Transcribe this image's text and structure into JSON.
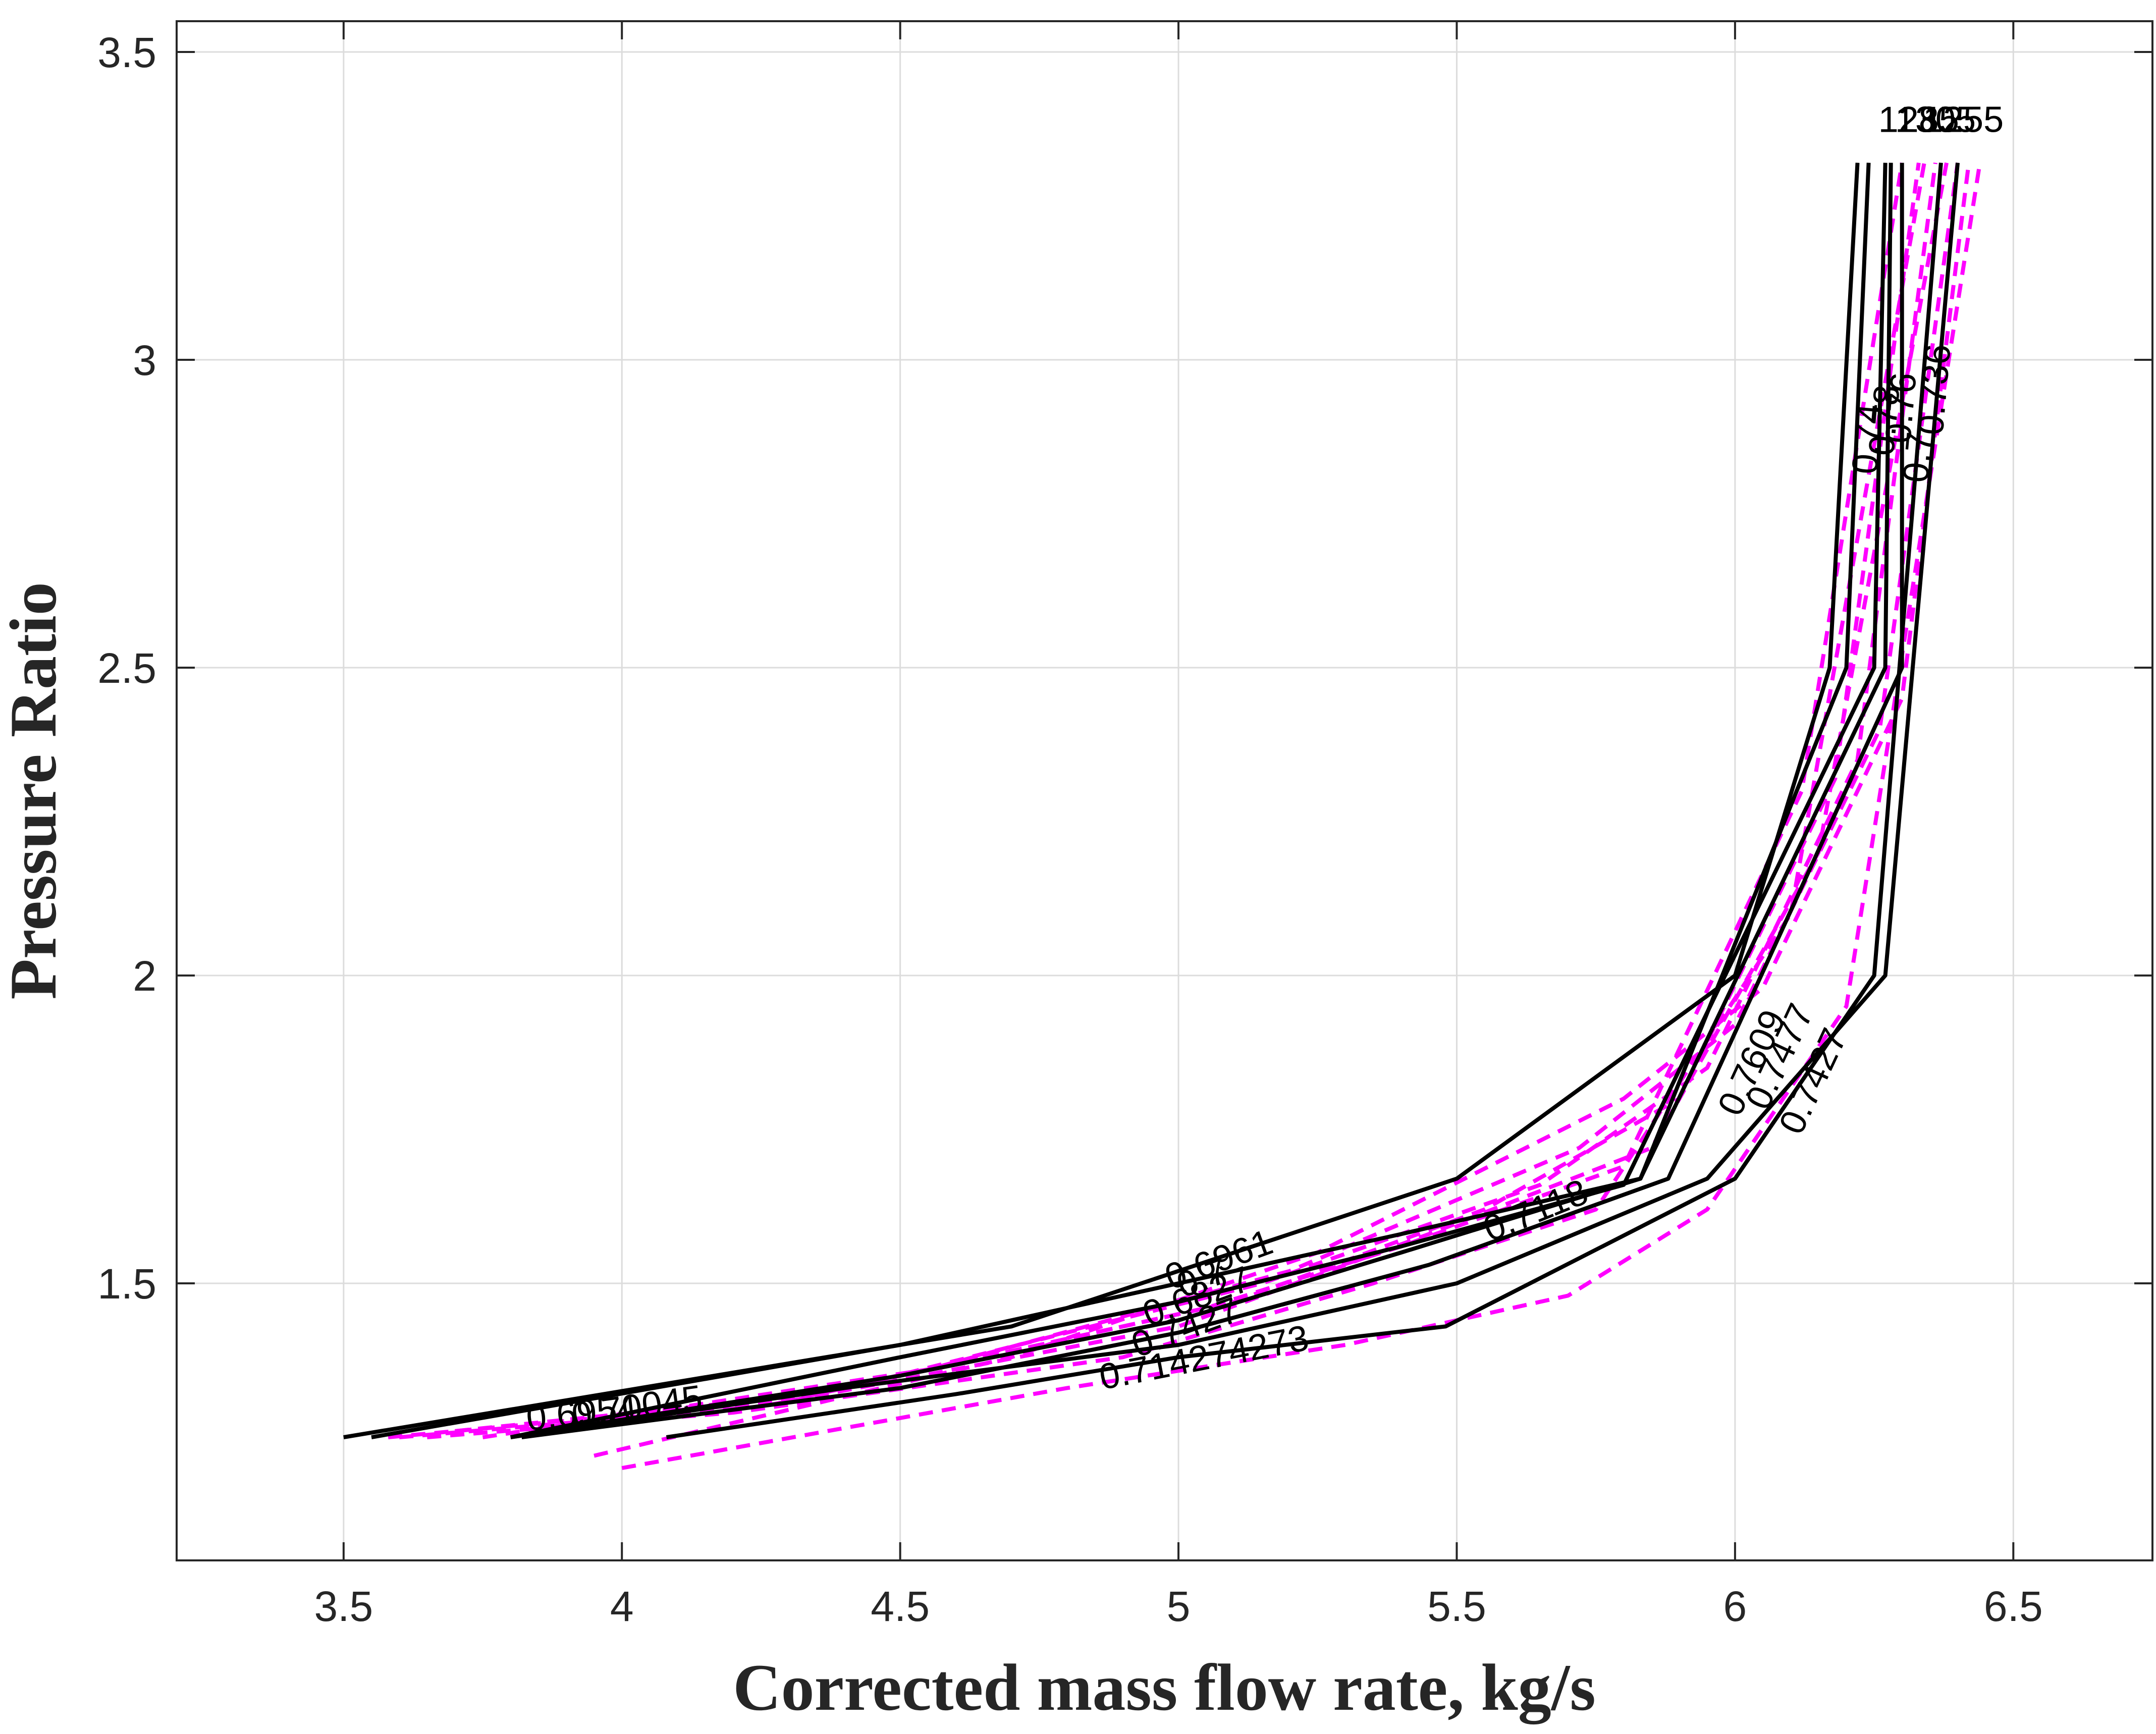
{
  "chart_data": {
    "type": "line",
    "title": "",
    "xlabel": "Corrected mass flow rate, kg/s",
    "ylabel": "Pressure Ratio",
    "xlim": [
      3.2,
      6.75
    ],
    "ylim": [
      1.05,
      3.55
    ],
    "xticks": [
      "3.5",
      "4",
      "4.5",
      "5",
      "5.5",
      "6",
      "6.5"
    ],
    "xtick_values": [
      3.5,
      4,
      4.5,
      5,
      5.5,
      6,
      6.5
    ],
    "yticks": [
      "1.5",
      "2",
      "2.5",
      "3",
      "3.5"
    ],
    "ytick_values": [
      1.5,
      2,
      2.5,
      3,
      3.5
    ],
    "grid": true,
    "colors": {
      "speed_line": "#000000",
      "efficiency_line": "#ff00ff",
      "grid": "#dcdcdc",
      "axis": "#262626"
    },
    "speed_lines": [
      {
        "name": "speed-1",
        "x": [
          3.5,
          4.7,
          5.0,
          5.5,
          6.0,
          6.17,
          6.22
        ],
        "y": [
          1.25,
          1.43,
          1.52,
          1.67,
          2.0,
          2.5,
          3.32
        ]
      },
      {
        "name": "speed-2",
        "x": [
          3.55,
          4.5,
          5.0,
          5.4,
          5.83,
          6.2,
          6.24
        ],
        "y": [
          1.25,
          1.4,
          1.5,
          1.58,
          1.67,
          2.5,
          3.32
        ]
      },
      {
        "name": "speed-3",
        "x": [
          3.8,
          4.5,
          5.0,
          5.4,
          5.8,
          6.25,
          6.27
        ],
        "y": [
          1.25,
          1.38,
          1.47,
          1.56,
          1.66,
          2.5,
          3.32
        ]
      },
      {
        "name": "speed-4",
        "x": [
          3.8,
          4.5,
          5.0,
          5.4,
          5.83,
          6.27,
          6.28
        ],
        "y": [
          1.25,
          1.35,
          1.44,
          1.55,
          1.67,
          2.5,
          3.32
        ]
      },
      {
        "name": "speed-5",
        "x": [
          3.82,
          4.5,
          5.0,
          5.45,
          5.88,
          6.3,
          6.3
        ],
        "y": [
          1.25,
          1.33,
          1.42,
          1.53,
          1.67,
          2.5,
          3.32
        ]
      },
      {
        "name": "speed-6",
        "x": [
          4.08,
          4.6,
          5.0,
          5.48,
          6.0,
          6.25,
          6.37
        ],
        "y": [
          1.25,
          1.32,
          1.38,
          1.43,
          1.67,
          2.0,
          3.32
        ]
      },
      {
        "name": "speed-7",
        "x": [
          3.8,
          4.4,
          5.0,
          5.5,
          5.95,
          6.27,
          6.4
        ],
        "y": [
          1.25,
          1.33,
          1.4,
          1.5,
          1.67,
          2.0,
          3.32
        ]
      }
    ],
    "efficiency_lines": [
      {
        "name": "eff-1",
        "x": [
          3.58,
          4.3,
          5.05,
          5.4,
          5.8,
          6.12,
          6.3
        ],
        "y": [
          1.25,
          1.31,
          1.46,
          1.56,
          1.69,
          2.3,
          3.32
        ]
      },
      {
        "name": "eff-2",
        "x": [
          3.7,
          4.35,
          5.1,
          5.55,
          5.9,
          6.18,
          6.33
        ],
        "y": [
          1.26,
          1.32,
          1.47,
          1.62,
          1.8,
          2.32,
          3.32
        ]
      },
      {
        "name": "eff-3",
        "x": [
          3.85,
          4.45,
          5.15,
          5.65,
          5.95,
          6.22,
          6.36
        ],
        "y": [
          1.26,
          1.34,
          1.5,
          1.66,
          1.85,
          2.35,
          3.32
        ]
      },
      {
        "name": "eff-4",
        "x": [
          3.75,
          4.55,
          5.2,
          5.72,
          6.0,
          6.26,
          6.4
        ],
        "y": [
          1.25,
          1.36,
          1.52,
          1.72,
          1.92,
          2.4,
          3.32
        ]
      },
      {
        "name": "eff-5",
        "x": [
          3.95,
          4.7,
          5.25,
          5.8,
          6.05,
          6.3,
          6.42
        ],
        "y": [
          1.22,
          1.38,
          1.55,
          1.8,
          1.98,
          2.45,
          3.32
        ]
      },
      {
        "name": "eff-6",
        "x": [
          4.0,
          4.8,
          5.3,
          5.7,
          5.95,
          6.2,
          6.44
        ],
        "y": [
          1.2,
          1.33,
          1.4,
          1.48,
          1.62,
          1.95,
          3.32
        ]
      },
      {
        "name": "eff-7",
        "x": [
          3.65,
          4.2,
          4.9,
          5.35,
          5.75,
          6.1,
          6.34
        ],
        "y": [
          1.25,
          1.29,
          1.38,
          1.5,
          1.62,
          2.1,
          3.32
        ]
      },
      {
        "name": "eff-8",
        "x": [
          3.6,
          4.25,
          5.0,
          5.45,
          5.85,
          6.15,
          6.38
        ],
        "y": [
          1.25,
          1.3,
          1.43,
          1.58,
          1.72,
          2.2,
          3.32
        ]
      }
    ],
    "annotations": [
      {
        "text": "1285",
        "x": 6.33,
        "y": 3.37,
        "rotate": 0
      },
      {
        "text": "1305",
        "x": 6.36,
        "y": 3.37,
        "rotate": 0
      },
      {
        "text": "1255",
        "x": 6.41,
        "y": 3.37,
        "rotate": 0
      },
      {
        "text": "0.74",
        "x": 6.26,
        "y": 2.87,
        "rotate": -85
      },
      {
        "text": "0.78",
        "x": 6.29,
        "y": 2.9,
        "rotate": -85
      },
      {
        "text": "0.76",
        "x": 6.32,
        "y": 2.92,
        "rotate": -85
      },
      {
        "text": "0.736",
        "x": 6.38,
        "y": 2.95,
        "rotate": -85
      },
      {
        "text": "0.7",
        "x": 6.35,
        "y": 2.84,
        "rotate": -85
      },
      {
        "text": "0.7609",
        "x": 6.05,
        "y": 1.85,
        "rotate": -65
      },
      {
        "text": "0.7477",
        "x": 6.1,
        "y": 1.86,
        "rotate": -65
      },
      {
        "text": "0.7427",
        "x": 6.16,
        "y": 1.82,
        "rotate": -65
      },
      {
        "text": "0.7118",
        "x": 5.65,
        "y": 1.6,
        "rotate": -22
      },
      {
        "text": "0.7",
        "x": 5.05,
        "y": 1.49,
        "rotate": -20
      },
      {
        "text": "0.6961",
        "x": 5.08,
        "y": 1.52,
        "rotate": -20
      },
      {
        "text": "0.6827",
        "x": 5.04,
        "y": 1.46,
        "rotate": -20
      },
      {
        "text": "0.7427",
        "x": 5.02,
        "y": 1.41,
        "rotate": -20
      },
      {
        "text": "0.714274273",
        "x": 5.05,
        "y": 1.36,
        "rotate": -11
      },
      {
        "text": "0.70045",
        "x": 4.03,
        "y": 1.28,
        "rotate": -8
      },
      {
        "text": "0.6954",
        "x": 3.93,
        "y": 1.27,
        "rotate": -6
      }
    ]
  }
}
